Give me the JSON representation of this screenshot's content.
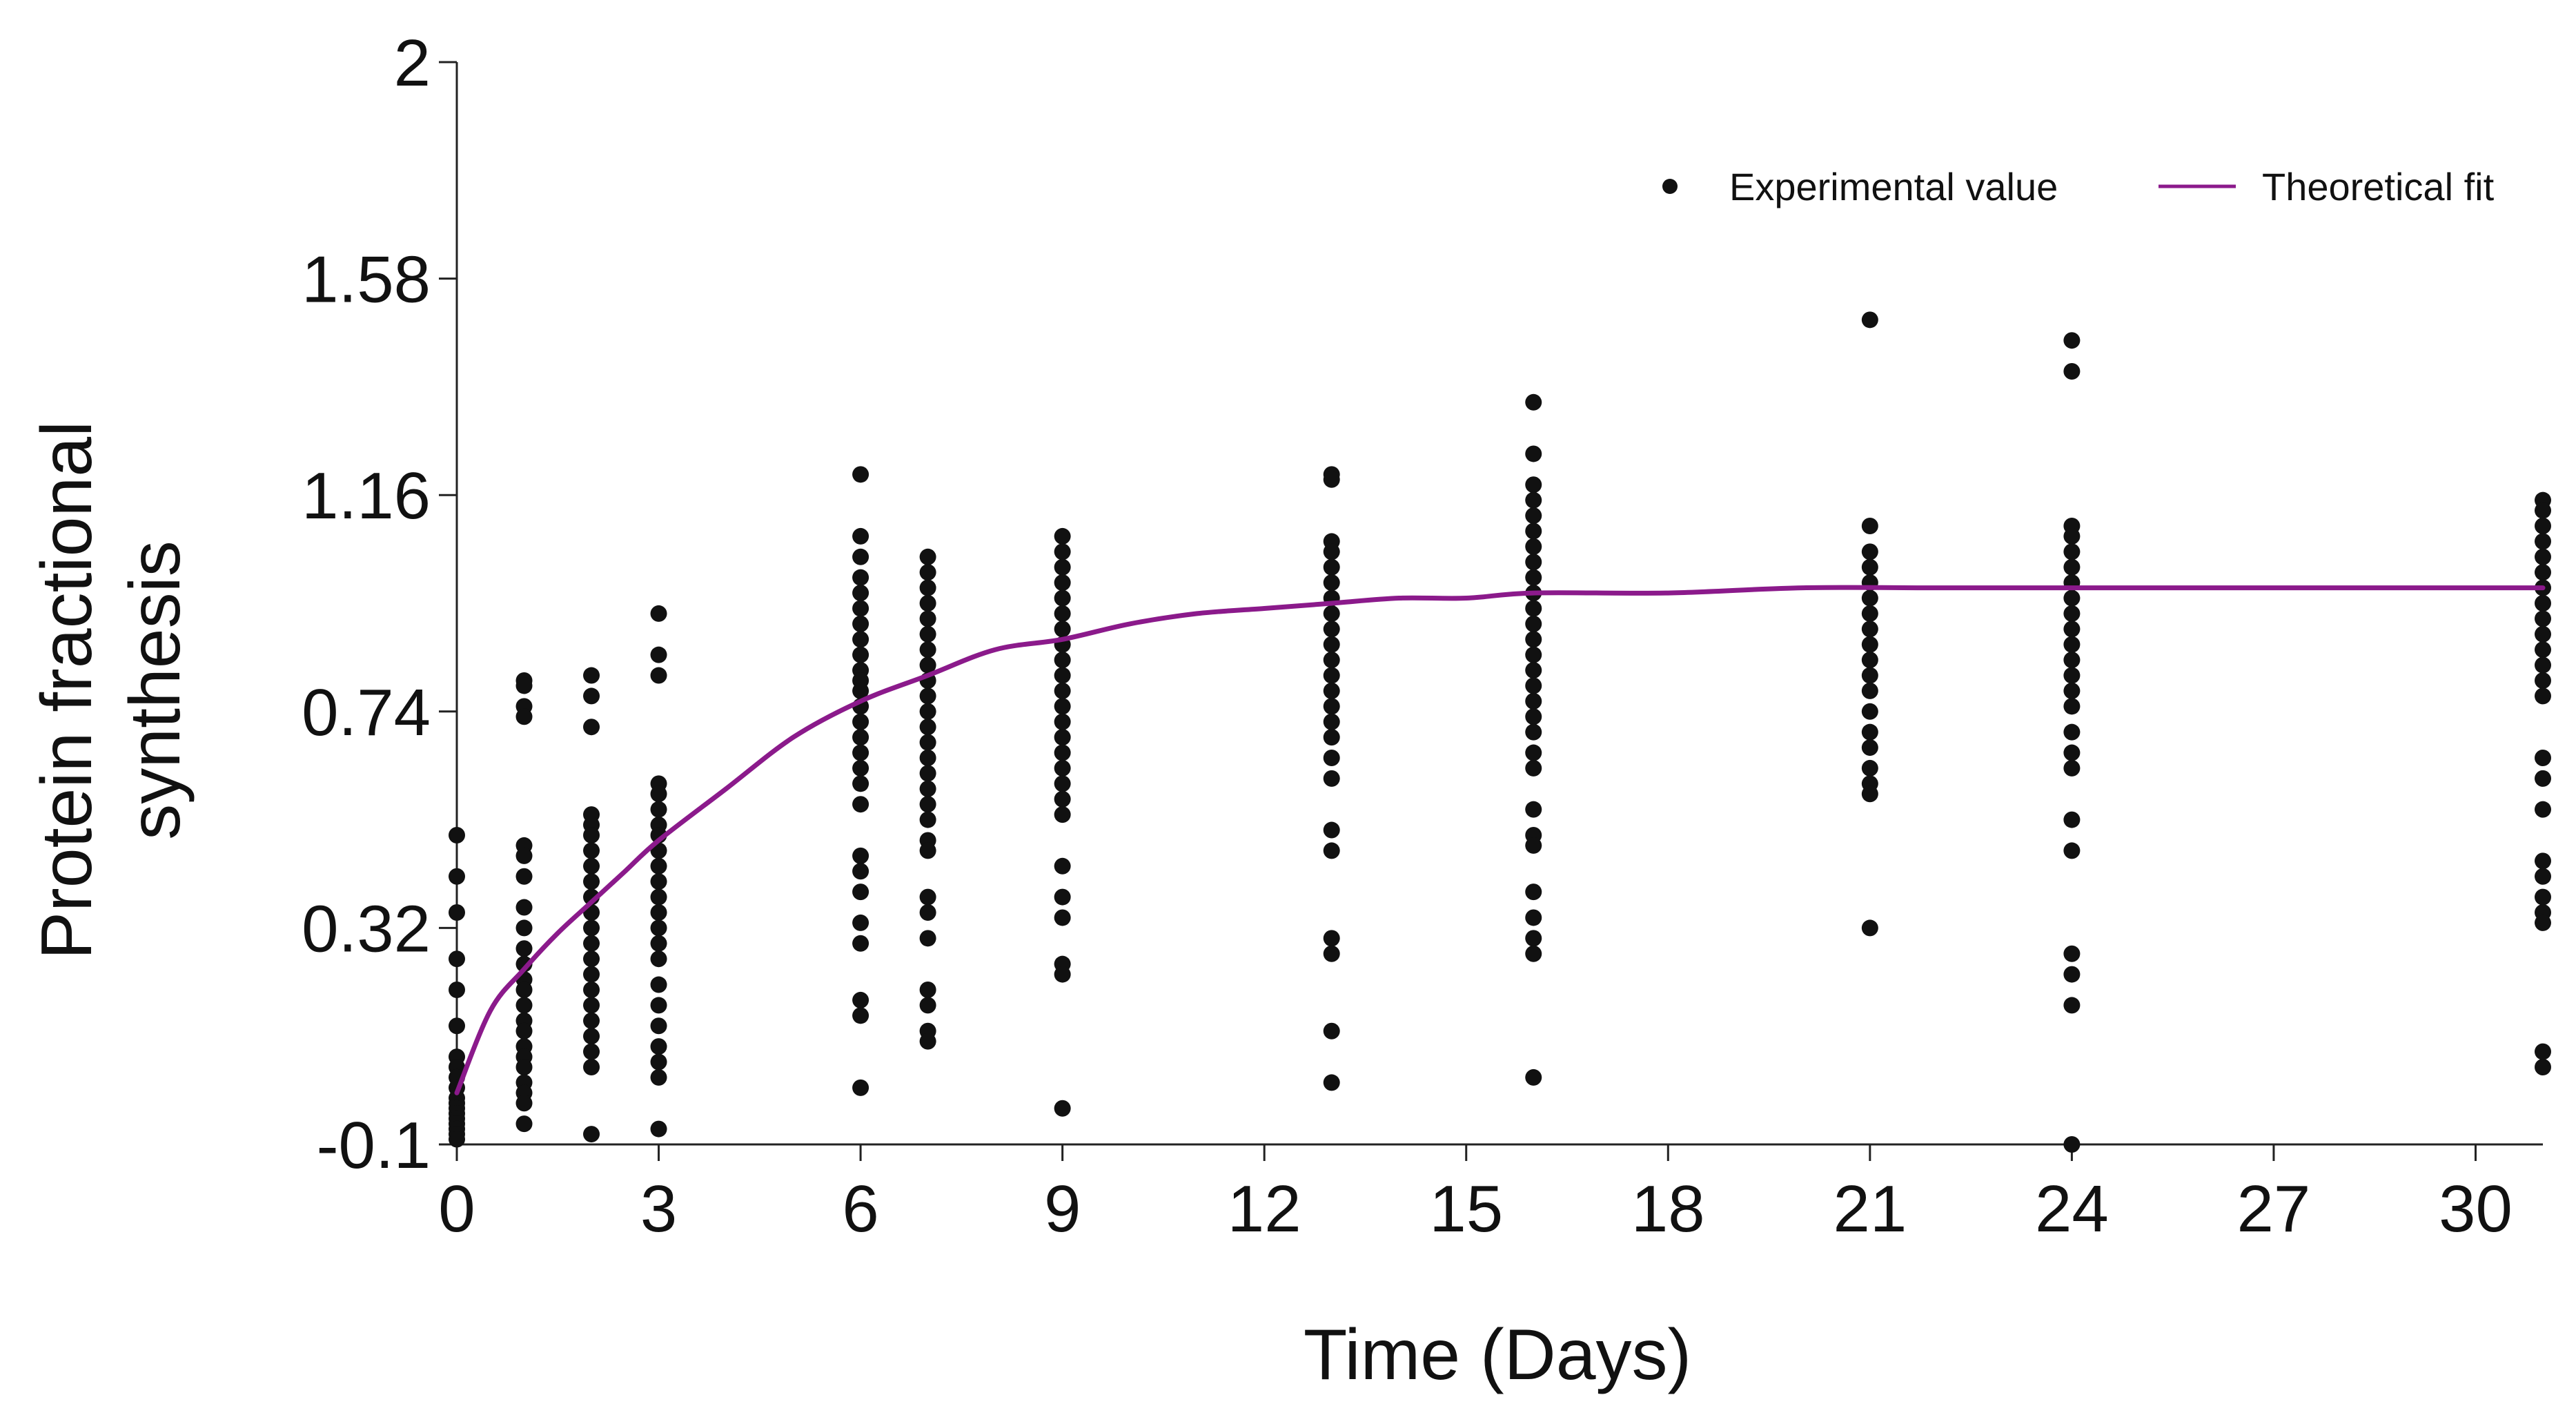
{
  "chart_data": {
    "type": "scatter",
    "xlabel": "Time (Days)",
    "ylabel_lines": [
      "Protein fractional",
      "synthesis"
    ],
    "xlim": [
      0,
      31
    ],
    "ylim": [
      -0.1,
      2
    ],
    "x_ticks": [
      0,
      3,
      6,
      9,
      12,
      15,
      18,
      21,
      24,
      27,
      30
    ],
    "y_ticks": [
      -0.1,
      0.32,
      0.74,
      1.16,
      1.58,
      2
    ],
    "y_tick_labels": [
      "-0.1",
      "0.32",
      "0.74",
      "1.16",
      "1.58",
      "2"
    ],
    "grid": false,
    "legend_position": "top-right",
    "legend": [
      {
        "label": "Experimental value",
        "marker": "dot"
      },
      {
        "label": "Theoretical fit",
        "marker": "line"
      }
    ],
    "colors": {
      "points": "#111111",
      "fit": "#8b1a8b",
      "axis": "#222222"
    },
    "series": [
      {
        "name": "Experimental value",
        "kind": "points",
        "groups": [
          {
            "x": 0,
            "y": [
              0.5,
              0.42,
              0.35,
              0.26,
              0.2,
              0.13,
              0.07,
              0.05,
              0.03,
              0.01,
              -0.01,
              -0.02,
              -0.03,
              -0.04,
              -0.05,
              -0.06,
              -0.07,
              -0.08,
              -0.09
            ]
          },
          {
            "x": 1,
            "y": [
              0.8,
              0.79,
              0.75,
              0.73,
              0.48,
              0.46,
              0.42,
              0.36,
              0.32,
              0.28,
              0.25,
              0.22,
              0.2,
              0.17,
              0.14,
              0.12,
              0.09,
              0.07,
              0.05,
              0.02,
              0.0,
              -0.02,
              -0.06
            ]
          },
          {
            "x": 2,
            "y": [
              0.81,
              0.77,
              0.71,
              0.54,
              0.52,
              0.5,
              0.47,
              0.44,
              0.41,
              0.38,
              0.35,
              0.32,
              0.29,
              0.26,
              0.23,
              0.2,
              0.17,
              0.14,
              0.11,
              0.08,
              0.05,
              -0.08
            ]
          },
          {
            "x": 3,
            "y": [
              0.93,
              0.85,
              0.81,
              0.6,
              0.58,
              0.55,
              0.52,
              0.5,
              0.47,
              0.44,
              0.41,
              0.38,
              0.35,
              0.32,
              0.29,
              0.26,
              0.21,
              0.17,
              0.13,
              0.09,
              0.06,
              0.03,
              -0.07
            ]
          },
          {
            "x": 6,
            "y": [
              1.2,
              1.08,
              1.04,
              1.0,
              0.97,
              0.94,
              0.91,
              0.88,
              0.85,
              0.82,
              0.8,
              0.78,
              0.75,
              0.72,
              0.69,
              0.66,
              0.63,
              0.6,
              0.56,
              0.46,
              0.43,
              0.39,
              0.33,
              0.29,
              0.18,
              0.15,
              0.01
            ]
          },
          {
            "x": 7,
            "y": [
              1.04,
              1.01,
              0.98,
              0.95,
              0.92,
              0.89,
              0.86,
              0.83,
              0.8,
              0.77,
              0.74,
              0.71,
              0.68,
              0.65,
              0.62,
              0.59,
              0.56,
              0.53,
              0.49,
              0.47,
              0.38,
              0.35,
              0.3,
              0.2,
              0.17,
              0.12,
              0.1
            ]
          },
          {
            "x": 9,
            "y": [
              1.08,
              1.05,
              1.02,
              0.99,
              0.96,
              0.93,
              0.9,
              0.87,
              0.84,
              0.81,
              0.78,
              0.75,
              0.72,
              0.69,
              0.66,
              0.63,
              0.6,
              0.57,
              0.54,
              0.44,
              0.38,
              0.34,
              0.25,
              0.23,
              -0.03
            ]
          },
          {
            "x": 13,
            "y": [
              1.2,
              1.19,
              1.07,
              1.05,
              1.02,
              0.99,
              0.96,
              0.93,
              0.9,
              0.87,
              0.84,
              0.81,
              0.78,
              0.75,
              0.72,
              0.69,
              0.65,
              0.61,
              0.51,
              0.47,
              0.3,
              0.27,
              0.12,
              0.02
            ]
          },
          {
            "x": 16,
            "y": [
              1.34,
              1.24,
              1.18,
              1.15,
              1.12,
              1.09,
              1.06,
              1.03,
              1.0,
              0.97,
              0.94,
              0.91,
              0.88,
              0.85,
              0.82,
              0.79,
              0.76,
              0.73,
              0.7,
              0.66,
              0.63,
              0.55,
              0.5,
              0.48,
              0.39,
              0.34,
              0.3,
              0.27,
              0.03
            ]
          },
          {
            "x": 21,
            "y": [
              1.5,
              1.1,
              1.05,
              1.02,
              0.99,
              0.96,
              0.93,
              0.9,
              0.87,
              0.84,
              0.81,
              0.78,
              0.74,
              0.7,
              0.67,
              0.63,
              0.6,
              0.58,
              0.32
            ]
          },
          {
            "x": 24,
            "y": [
              1.46,
              1.4,
              1.1,
              1.08,
              1.05,
              1.02,
              0.99,
              0.96,
              0.93,
              0.9,
              0.87,
              0.84,
              0.81,
              0.78,
              0.75,
              0.7,
              0.66,
              0.63,
              0.53,
              0.47,
              0.27,
              0.23,
              0.17,
              -0.1
            ]
          },
          {
            "x": 31,
            "y": [
              1.15,
              1.13,
              1.1,
              1.07,
              1.04,
              1.01,
              0.98,
              0.95,
              0.92,
              0.89,
              0.86,
              0.83,
              0.8,
              0.77,
              0.65,
              0.61,
              0.55,
              0.45,
              0.42,
              0.38,
              0.35,
              0.33,
              0.08,
              0.05
            ]
          }
        ]
      },
      {
        "name": "Theoretical fit",
        "kind": "curve",
        "x": [
          0,
          0.5,
          1,
          1.5,
          2,
          2.5,
          3,
          4,
          5,
          6,
          7,
          8,
          9,
          10,
          11,
          12,
          13,
          14,
          15,
          16,
          18,
          20,
          22,
          24,
          26,
          28,
          30,
          31
        ],
        "y": [
          0.0,
          0.16,
          0.24,
          0.31,
          0.37,
          0.43,
          0.49,
          0.59,
          0.69,
          0.76,
          0.81,
          0.86,
          0.88,
          0.91,
          0.93,
          0.94,
          0.95,
          0.96,
          0.96,
          0.97,
          0.97,
          0.98,
          0.98,
          0.98,
          0.98,
          0.98,
          0.98,
          0.98
        ]
      }
    ]
  }
}
